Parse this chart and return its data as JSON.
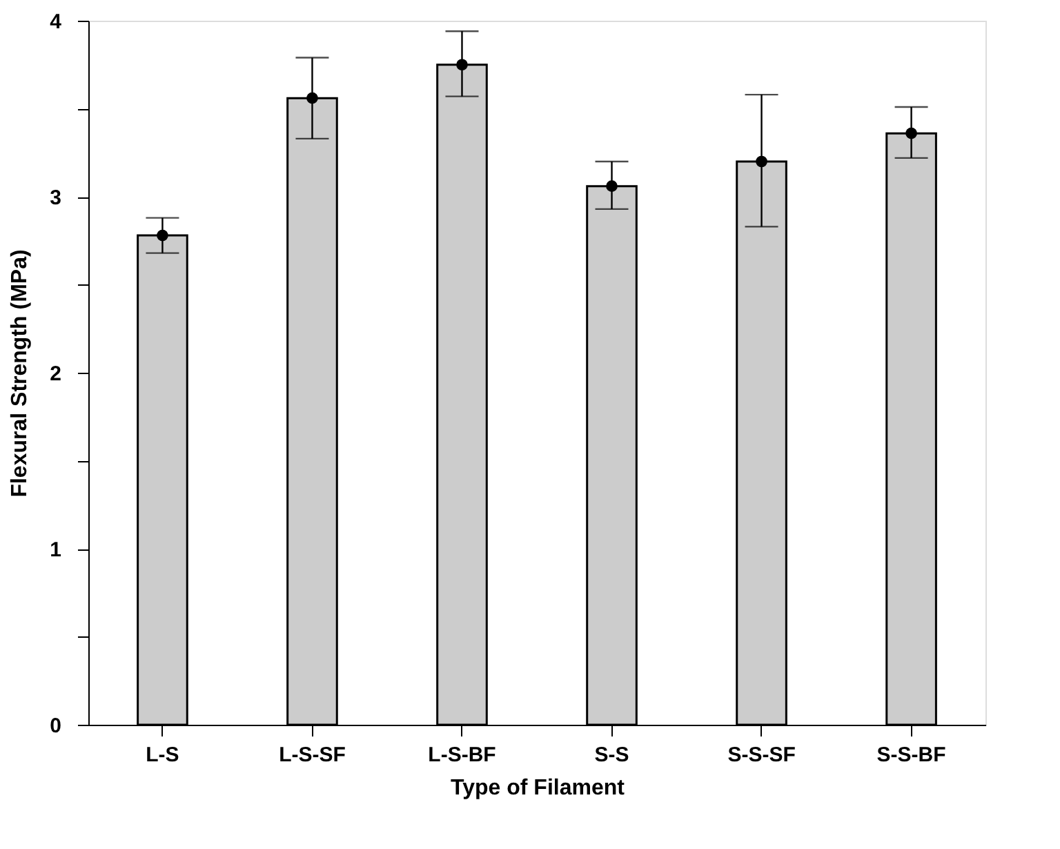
{
  "chart_data": {
    "type": "bar",
    "xlabel": "Type of Filament",
    "ylabel": "Flexural Strength (MPa)",
    "categories": [
      "L-S",
      "L-S-SF",
      "L-S-BF",
      "S-S",
      "S-S-SF",
      "S-S-BF"
    ],
    "series": [
      {
        "type": "bar",
        "color": "#cccccc",
        "values": [
          2.78,
          3.56,
          3.75,
          3.06,
          3.2,
          3.36
        ],
        "errors": [
          [
            2.68,
            2.88
          ],
          [
            3.33,
            3.79
          ],
          [
            3.57,
            3.94
          ],
          [
            2.93,
            3.2
          ],
          [
            2.83,
            3.58
          ],
          [
            3.22,
            3.51
          ]
        ]
      },
      {
        "type": "scatter",
        "color": "#000000",
        "marker": "circle",
        "x": [
          "L-S",
          "L-S-SF",
          "L-S-BF",
          "S-S",
          "S-S-SF",
          "S-S-BF"
        ],
        "values": [
          2.78,
          3.56,
          3.75,
          3.06,
          3.2,
          3.36
        ]
      }
    ],
    "ylim": [
      0,
      4
    ],
    "yticks": [
      0,
      {
        "value": 0.5,
        "label": null
      },
      1,
      {
        "value": 1.5,
        "label": null
      },
      2,
      {
        "value": 2.5,
        "label": null
      },
      3,
      {
        "value": 3.5,
        "label": null
      },
      4
    ],
    "grid": false
  }
}
